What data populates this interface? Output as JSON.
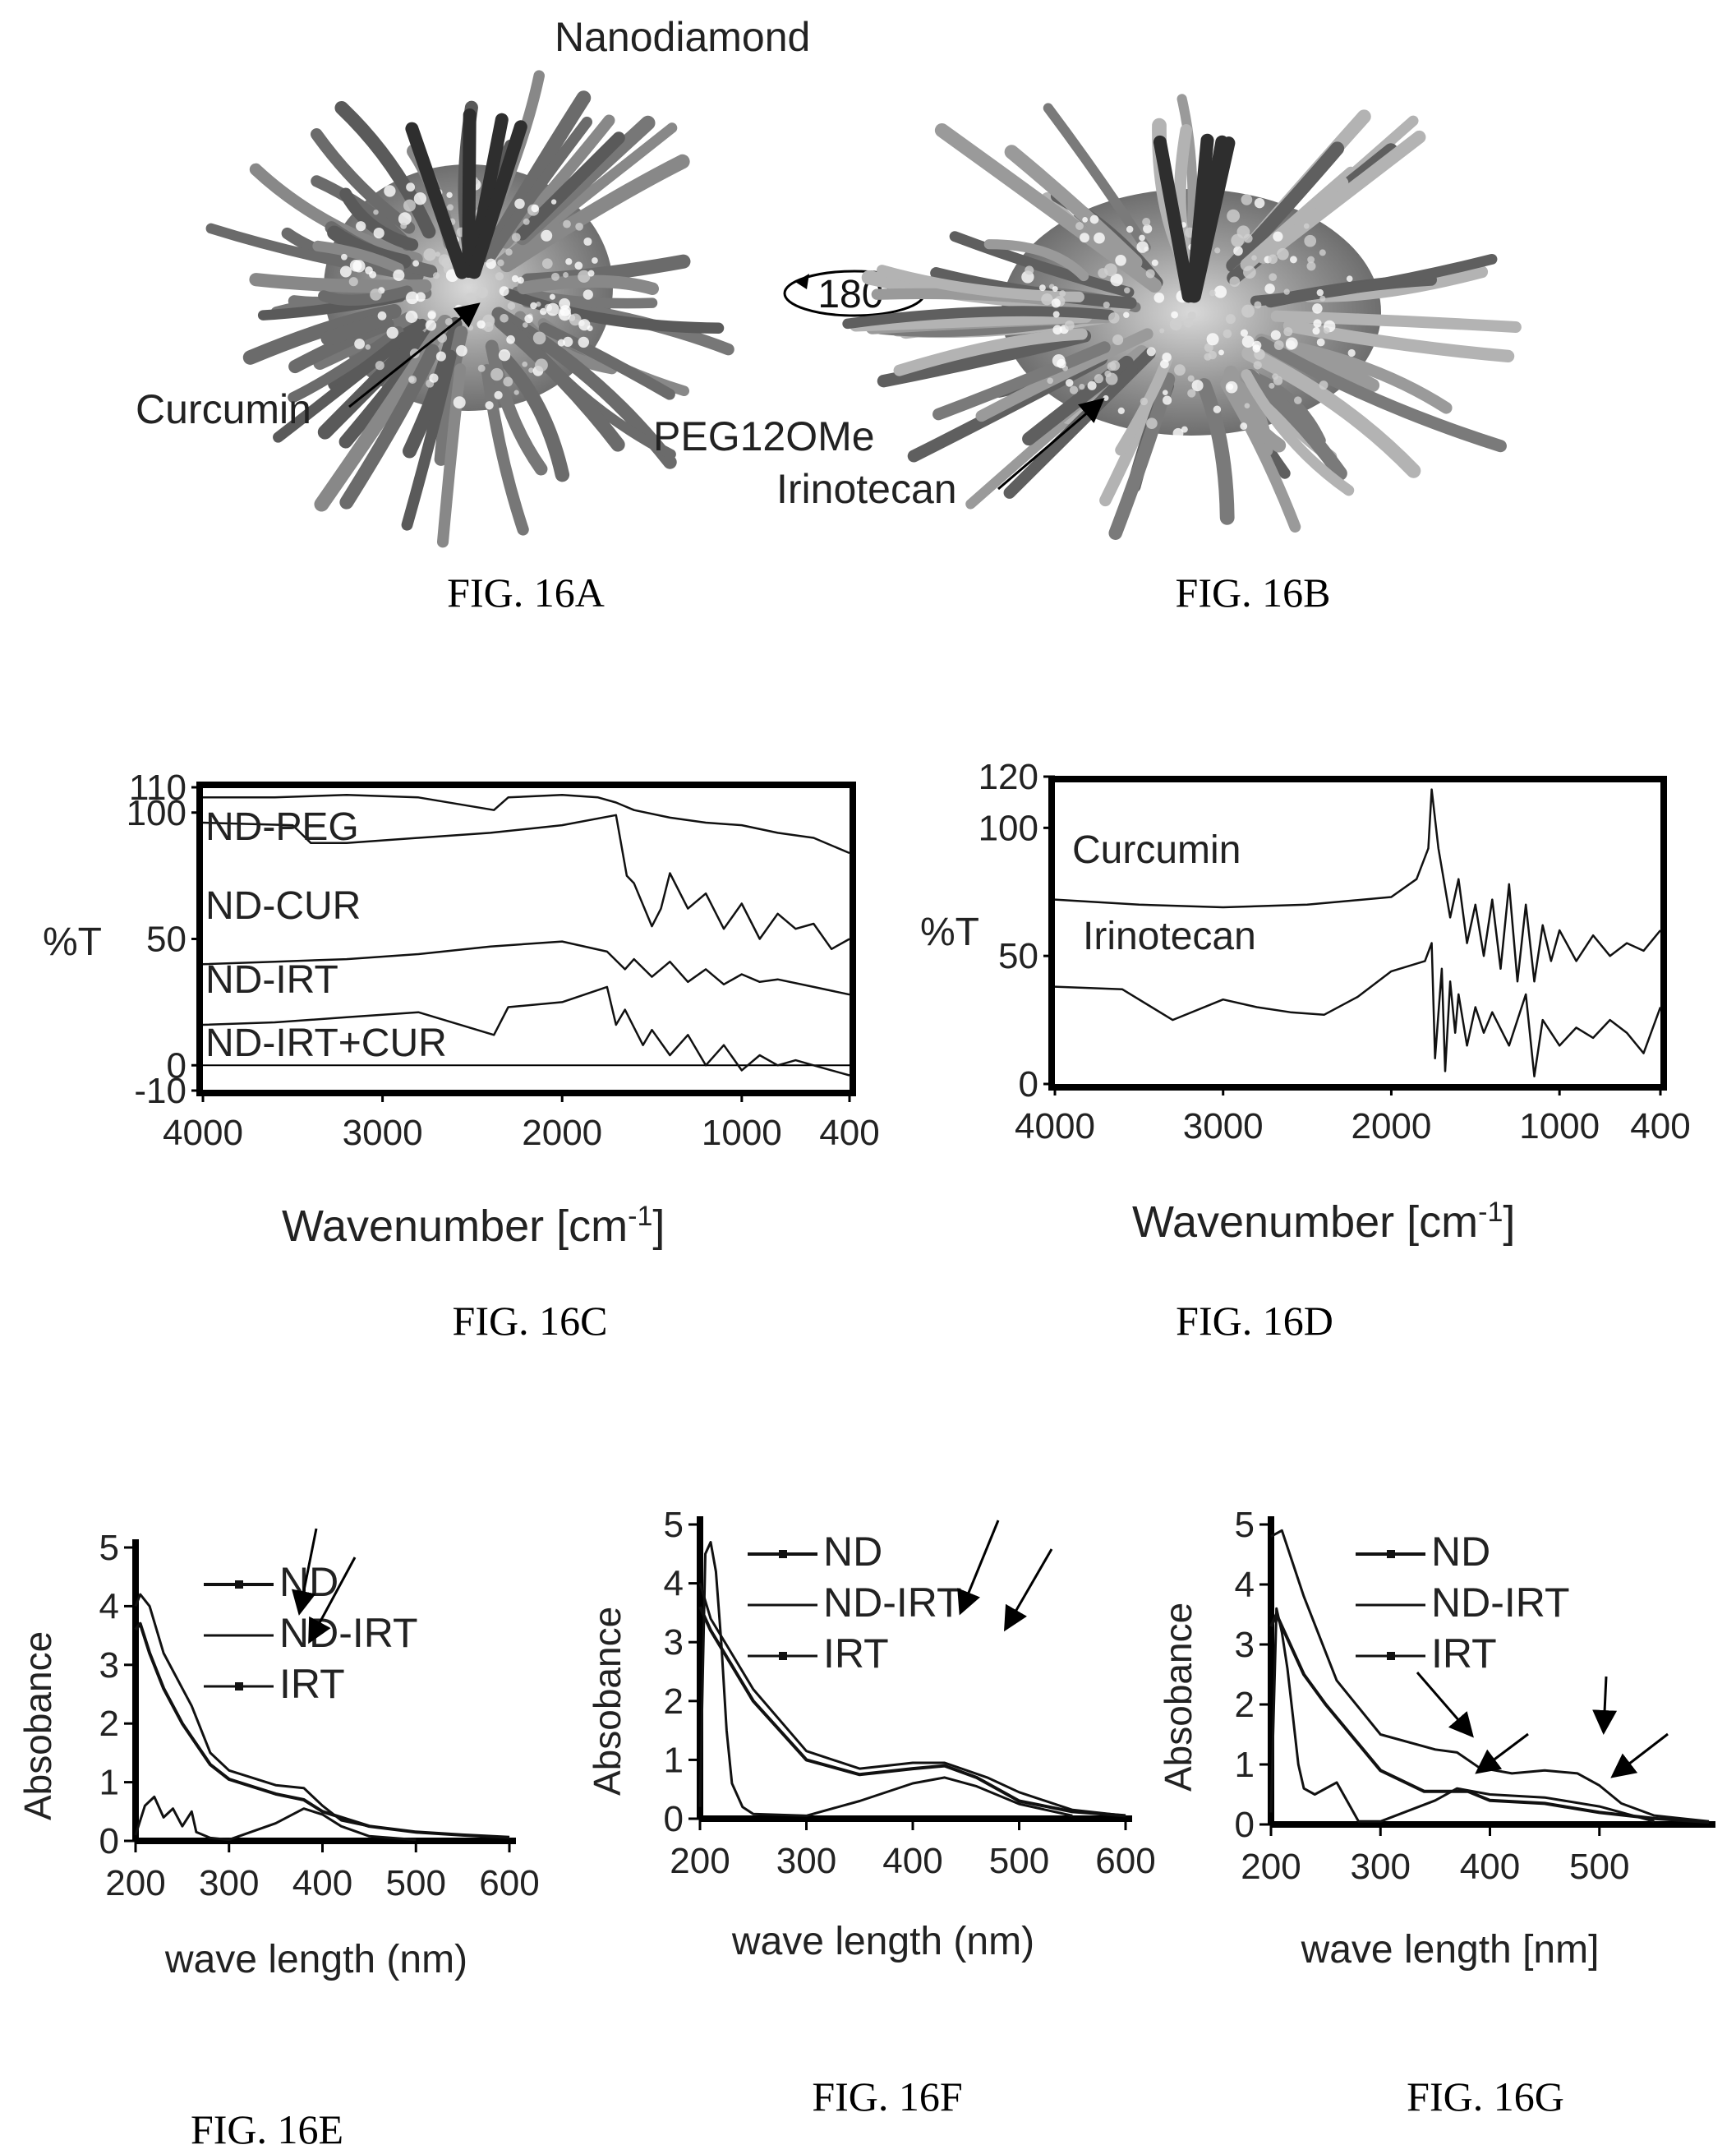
{
  "figures": {
    "a": {
      "caption": "FIG. 16A",
      "labels": {
        "nanodiamond": "Nanodiamond",
        "curcumin": "Curcumin",
        "peg": "PEG12OMe",
        "rotation": "180°"
      }
    },
    "b": {
      "caption": "FIG. 16B",
      "labels": {
        "irinotecan": "Irinotecan"
      }
    }
  },
  "chart_data": [
    {
      "id": "c",
      "type": "line",
      "caption": "FIG. 16C",
      "xlabel": "Wavenumber [cm-1]",
      "ylabel": "%T",
      "xlim": [
        4000,
        400
      ],
      "ylim": [
        -10,
        110
      ],
      "x_reversed": true,
      "x_ticks": [
        "4000",
        "3000",
        "2000",
        "1000",
        "400"
      ],
      "y_ticks": [
        "110",
        "100",
        "50",
        "0",
        "-10"
      ],
      "grid": false,
      "series": [
        {
          "name": "ND-PEG",
          "x": [
            4000,
            3600,
            3200,
            2800,
            2380,
            2300,
            2000,
            1800,
            1700,
            1600,
            1400,
            1200,
            1000,
            800,
            600,
            400
          ],
          "y": [
            106,
            106,
            107,
            106,
            101,
            106,
            107,
            106,
            104,
            101,
            98,
            96,
            95,
            92,
            90,
            84
          ]
        },
        {
          "name": "ND-CUR",
          "x": [
            4000,
            3500,
            3400,
            3200,
            2800,
            2400,
            2000,
            1700,
            1640,
            1600,
            1500,
            1450,
            1400,
            1300,
            1200,
            1100,
            1000,
            900,
            800,
            700,
            600,
            500,
            400
          ],
          "y": [
            96,
            95,
            88,
            88,
            90,
            92,
            95,
            99,
            75,
            72,
            55,
            62,
            76,
            62,
            68,
            54,
            64,
            50,
            60,
            54,
            56,
            46,
            50
          ]
        },
        {
          "name": "ND-IRT",
          "x": [
            4000,
            3600,
            3200,
            2800,
            2400,
            2000,
            1750,
            1650,
            1600,
            1500,
            1400,
            1300,
            1200,
            1100,
            1000,
            900,
            800,
            600,
            400
          ],
          "y": [
            40,
            41,
            42,
            44,
            47,
            49,
            45,
            38,
            42,
            35,
            41,
            33,
            38,
            32,
            36,
            33,
            34,
            31,
            28
          ]
        },
        {
          "name": "ND-IRT+CUR",
          "x": [
            4000,
            3600,
            3200,
            2800,
            2380,
            2300,
            2000,
            1750,
            1700,
            1650,
            1550,
            1500,
            1400,
            1300,
            1200,
            1100,
            1000,
            900,
            800,
            700,
            600,
            500,
            400
          ],
          "y": [
            16,
            17,
            19,
            21,
            12,
            23,
            25,
            31,
            16,
            22,
            8,
            14,
            4,
            12,
            0,
            8,
            -2,
            4,
            0,
            2,
            0,
            -2,
            -4
          ]
        }
      ]
    },
    {
      "id": "d",
      "type": "line",
      "caption": "FIG. 16D",
      "xlabel": "Wavenumber [cm-1]",
      "ylabel": "%T",
      "xlim": [
        4000,
        400
      ],
      "ylim": [
        0,
        120
      ],
      "x_reversed": true,
      "x_ticks": [
        "4000",
        "3000",
        "2000",
        "1000",
        "400"
      ],
      "y_ticks": [
        "120",
        "100",
        "50",
        "0"
      ],
      "grid": false,
      "series": [
        {
          "name": "Curcumin",
          "x": [
            4000,
            3500,
            3000,
            2500,
            2000,
            1850,
            1780,
            1760,
            1720,
            1650,
            1600,
            1550,
            1500,
            1450,
            1400,
            1350,
            1300,
            1250,
            1200,
            1150,
            1100,
            1050,
            1000,
            900,
            800,
            700,
            600,
            500,
            400
          ],
          "y": [
            72,
            70,
            69,
            70,
            73,
            80,
            92,
            115,
            92,
            65,
            80,
            55,
            70,
            50,
            72,
            45,
            78,
            40,
            70,
            40,
            62,
            48,
            60,
            48,
            58,
            50,
            55,
            52,
            60
          ]
        },
        {
          "name": "Irinotecan",
          "x": [
            4000,
            3600,
            3300,
            3000,
            2800,
            2600,
            2400,
            2200,
            2000,
            1800,
            1760,
            1740,
            1700,
            1680,
            1650,
            1620,
            1600,
            1550,
            1500,
            1450,
            1400,
            1300,
            1200,
            1150,
            1100,
            1000,
            900,
            800,
            700,
            600,
            500,
            400
          ],
          "y": [
            38,
            37,
            25,
            33,
            30,
            28,
            27,
            34,
            44,
            48,
            55,
            10,
            45,
            5,
            40,
            20,
            35,
            15,
            30,
            20,
            28,
            15,
            35,
            3,
            25,
            15,
            22,
            18,
            25,
            20,
            12,
            30
          ]
        }
      ]
    },
    {
      "id": "e",
      "type": "line",
      "caption": "FIG. 16E",
      "xlabel": "wave length (nm)",
      "ylabel": "Absobance",
      "xlim": [
        200,
        600
      ],
      "ylim": [
        0,
        5
      ],
      "x_ticks": [
        "200",
        "300",
        "400",
        "500",
        "600"
      ],
      "y_ticks": [
        "0",
        "1",
        "2",
        "3",
        "4",
        "5"
      ],
      "grid": false,
      "series": [
        {
          "name": "ND",
          "x": [
            200,
            205,
            215,
            230,
            250,
            280,
            300,
            350,
            380,
            400,
            450,
            500,
            550,
            600
          ],
          "y": [
            3.6,
            3.7,
            3.2,
            2.6,
            2.0,
            1.3,
            1.05,
            0.8,
            0.7,
            0.5,
            0.25,
            0.15,
            0.1,
            0.06
          ]
        },
        {
          "name": "ND-IRT",
          "x": [
            200,
            205,
            215,
            230,
            250,
            260,
            280,
            300,
            350,
            380,
            400,
            420,
            450,
            500,
            550,
            600
          ],
          "y": [
            4.0,
            4.2,
            4.0,
            3.2,
            2.6,
            2.3,
            1.5,
            1.2,
            0.95,
            0.9,
            0.6,
            0.35,
            0.25,
            0.15,
            0.1,
            0.06
          ]
        },
        {
          "name": "IRT",
          "x": [
            200,
            210,
            220,
            230,
            240,
            250,
            260,
            265,
            280,
            300,
            350,
            380,
            400,
            420,
            450,
            500
          ],
          "y": [
            0.1,
            0.6,
            0.75,
            0.4,
            0.55,
            0.25,
            0.5,
            0.15,
            0.05,
            0.02,
            0.3,
            0.55,
            0.45,
            0.25,
            0.08,
            0.02
          ]
        }
      ]
    },
    {
      "id": "f",
      "type": "line",
      "caption": "FIG. 16F",
      "xlabel": "wave length (nm)",
      "ylabel": "Absobance",
      "xlim": [
        200,
        600
      ],
      "ylim": [
        0,
        5
      ],
      "x_ticks": [
        "200",
        "300",
        "400",
        "500",
        "600"
      ],
      "y_ticks": [
        "0",
        "1",
        "2",
        "3",
        "4",
        "5"
      ],
      "grid": false,
      "series": [
        {
          "name": "ND",
          "x": [
            200,
            210,
            230,
            250,
            300,
            350,
            400,
            430,
            460,
            500,
            550,
            600
          ],
          "y": [
            3.6,
            3.2,
            2.6,
            2.0,
            1.0,
            0.75,
            0.85,
            0.9,
            0.7,
            0.3,
            0.12,
            0.05
          ]
        },
        {
          "name": "ND-IRT",
          "x": [
            200,
            210,
            230,
            250,
            300,
            350,
            400,
            430,
            470,
            500,
            550,
            600
          ],
          "y": [
            4.0,
            3.4,
            2.8,
            2.2,
            1.15,
            0.85,
            0.95,
            0.95,
            0.7,
            0.45,
            0.15,
            0.05
          ]
        },
        {
          "name": "IRT",
          "x": [
            200,
            205,
            210,
            215,
            220,
            225,
            230,
            240,
            250,
            300,
            350,
            400,
            430,
            460,
            500,
            550
          ],
          "y": [
            0.2,
            4.5,
            4.7,
            4.2,
            3.0,
            1.5,
            0.6,
            0.2,
            0.08,
            0.05,
            0.3,
            0.6,
            0.7,
            0.55,
            0.25,
            0.05
          ]
        }
      ]
    },
    {
      "id": "g",
      "type": "line",
      "caption": "FIG. 16G",
      "xlabel": "wave length [nm]",
      "ylabel": "Absobance",
      "xlim": [
        200,
        600
      ],
      "ylim": [
        0,
        5
      ],
      "x_ticks": [
        "200",
        "300",
        "400",
        "500"
      ],
      "y_ticks": [
        "0",
        "1",
        "2",
        "3",
        "4",
        "5"
      ],
      "grid": false,
      "series": [
        {
          "name": "ND",
          "x": [
            200,
            205,
            215,
            230,
            250,
            300,
            340,
            360,
            380,
            400,
            450,
            500,
            550,
            600
          ],
          "y": [
            3.3,
            3.5,
            3.1,
            2.5,
            2.0,
            0.9,
            0.55,
            0.55,
            0.55,
            0.4,
            0.35,
            0.2,
            0.1,
            0.04
          ]
        },
        {
          "name": "ND-IRT",
          "x": [
            200,
            210,
            230,
            260,
            300,
            350,
            370,
            390,
            420,
            450,
            480,
            500,
            520,
            550,
            600
          ],
          "y": [
            4.8,
            4.9,
            3.8,
            2.4,
            1.5,
            1.25,
            1.2,
            0.95,
            0.85,
            0.9,
            0.85,
            0.65,
            0.35,
            0.15,
            0.05
          ]
        },
        {
          "name": "IRT",
          "x": [
            200,
            205,
            210,
            215,
            220,
            225,
            230,
            240,
            260,
            280,
            300,
            350,
            370,
            400,
            450,
            500,
            550
          ],
          "y": [
            0.2,
            3.6,
            3.2,
            2.6,
            1.8,
            1.0,
            0.6,
            0.5,
            0.7,
            0.05,
            0.05,
            0.4,
            0.6,
            0.5,
            0.45,
            0.3,
            0.05
          ]
        }
      ]
    }
  ]
}
